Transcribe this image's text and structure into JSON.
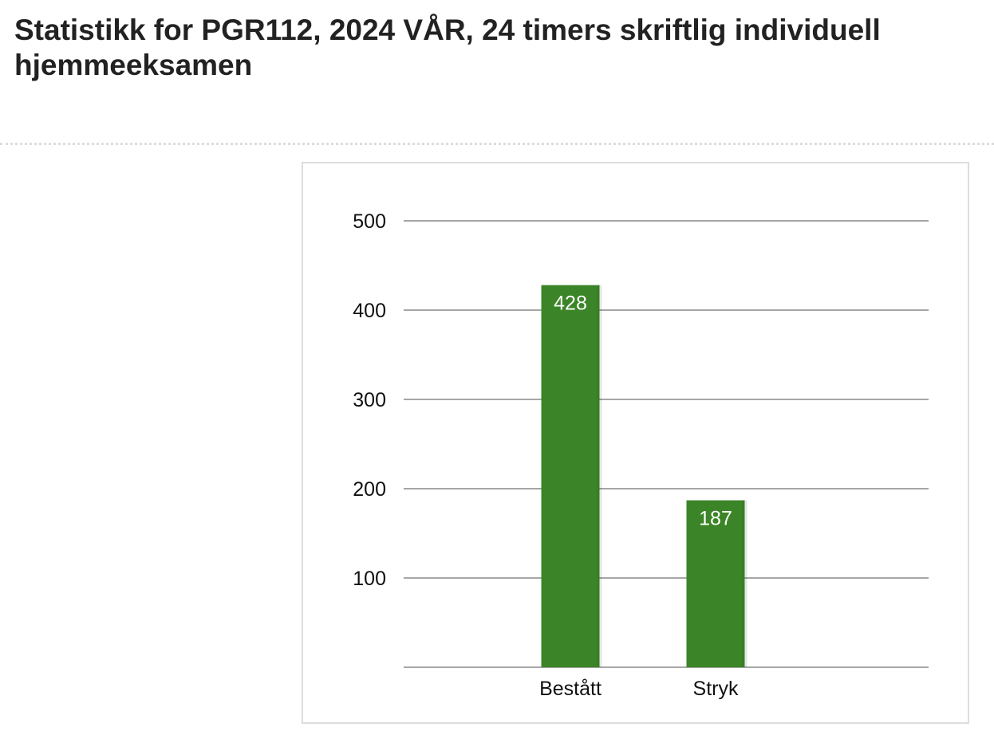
{
  "page": {
    "title": "Statistikk for PGR112, 2024 VÅR, 24 timers skriftlig individuell hjemmeeksamen"
  },
  "colors": {
    "bar": "#3b8427",
    "gridline": "#888888",
    "bar_label": "#ffffff",
    "axis_text": "#111111"
  },
  "chart_data": {
    "type": "bar",
    "title": "",
    "xlabel": "",
    "ylabel": "",
    "categories": [
      "Bestått",
      "Stryk"
    ],
    "values": [
      428,
      187
    ],
    "ylim": [
      0,
      500
    ],
    "yticks": [
      100,
      200,
      300,
      400,
      500
    ],
    "grid": true,
    "data_labels": true,
    "legend": "none"
  }
}
